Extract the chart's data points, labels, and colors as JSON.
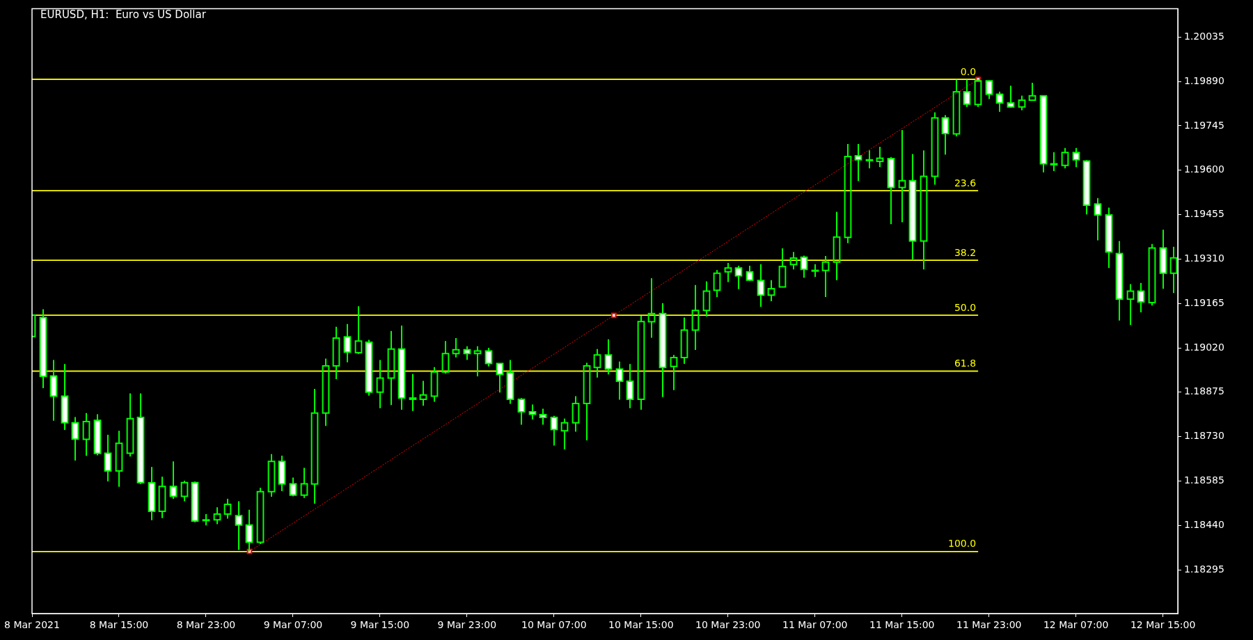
{
  "chart_data": {
    "type": "candlestick",
    "title": "EURUSD, H1:  Euro vs US Dollar",
    "color": "#00ff00",
    "colors": [
      "#00ff00",
      "#ffffff",
      "#ffffff",
      "#ffffff",
      "#ffffff",
      "#00ff00",
      "#ffffff",
      "#ffffff",
      "#00ff00",
      "#00ff00",
      "#ffffff",
      "#ffffff",
      "#00ff00",
      "#ffffff",
      "#00ff00",
      "#ffffff",
      "#ffffff",
      "#00ff00",
      "#00ff00",
      "#ffffff",
      "#ffffff",
      "#00ff00",
      "#00ff00",
      "#ffffff",
      "#ffffff",
      "#00ff00",
      "#00ff00",
      "#00ff00",
      "#00ff00",
      "#ffffff",
      "#00ff00",
      "#ffffff",
      "#00ff00",
      "#00ff00",
      "#ffffff",
      "#ffffff",
      "#00ff00",
      "#00ff00",
      "#00ff00",
      "#00ff00",
      "#ffffff",
      "#00ff00",
      "#ffffff",
      "#ffffff",
      "#ffffff",
      "#ffffff",
      "#ffffff",
      "#ffffff",
      "#ffffff",
      "#00ff00",
      "#00ff00",
      "#00ff00",
      "#00ff00",
      "#ffffff",
      "#ffffff",
      "#ffffff",
      "#00ff00",
      "#00ff00",
      "#ffffff",
      "#00ff00",
      "#00ff00",
      "#00ff00",
      "#00ff00",
      "#00ff00",
      "#00ff00",
      "#ffffff",
      "#ffffff",
      "#ffffff",
      "#00ff00",
      "#00ff00",
      "#00ff00",
      "#ffffff",
      "#00ff00",
      "#00ff00",
      "#00ff00",
      "#00ff00",
      "#ffffff",
      "#ffffff",
      "#00ff00",
      "#ffffff",
      "#00ff00",
      "#ffffff",
      "#00ff00",
      "#00ff00",
      "#ffffff",
      "#00ff00",
      "#ffffff",
      "#00ff00",
      "#ffffff",
      "#ffffff",
      "#ffffff",
      "#00ff00",
      "#00ff00",
      "#ffffff",
      "#ffffff",
      "#00ff00",
      "#ffffff",
      "#ffffff",
      "#ffffff",
      "#ffffff",
      "#ffffff",
      "#00ff00",
      "#ffffff",
      "#00ff00",
      "#ffffff",
      "#00ff00"
    ],
    "x": [
      "2021-03-08T07:00",
      "2021-03-08T08:00",
      "2021-03-08T09:00",
      "2021-03-08T10:00",
      "2021-03-08T11:00",
      "2021-03-08T12:00",
      "2021-03-08T13:00",
      "2021-03-08T14:00",
      "2021-03-08T15:00",
      "2021-03-08T16:00",
      "2021-03-08T17:00",
      "2021-03-08T18:00",
      "2021-03-08T19:00",
      "2021-03-08T20:00",
      "2021-03-08T21:00",
      "2021-03-08T22:00",
      "2021-03-08T23:00",
      "2021-03-09T00:00",
      "2021-03-09T01:00",
      "2021-03-09T02:00",
      "2021-03-09T03:00",
      "2021-03-09T04:00",
      "2021-03-09T05:00",
      "2021-03-09T06:00",
      "2021-03-09T07:00",
      "2021-03-09T08:00",
      "2021-03-09T09:00",
      "2021-03-09T10:00",
      "2021-03-09T11:00",
      "2021-03-09T12:00",
      "2021-03-09T13:00",
      "2021-03-09T14:00",
      "2021-03-09T15:00",
      "2021-03-09T16:00",
      "2021-03-09T17:00",
      "2021-03-09T18:00",
      "2021-03-09T19:00",
      "2021-03-09T20:00",
      "2021-03-09T21:00",
      "2021-03-09T22:00",
      "2021-03-09T23:00",
      "2021-03-10T00:00",
      "2021-03-10T01:00",
      "2021-03-10T02:00",
      "2021-03-10T03:00",
      "2021-03-10T04:00",
      "2021-03-10T05:00",
      "2021-03-10T06:00",
      "2021-03-10T07:00",
      "2021-03-10T08:00",
      "2021-03-10T09:00",
      "2021-03-10T10:00",
      "2021-03-10T11:00",
      "2021-03-10T12:00",
      "2021-03-10T13:00",
      "2021-03-10T14:00",
      "2021-03-10T15:00",
      "2021-03-10T16:00",
      "2021-03-10T17:00",
      "2021-03-10T18:00",
      "2021-03-10T19:00",
      "2021-03-10T20:00",
      "2021-03-10T21:00",
      "2021-03-10T22:00",
      "2021-03-10T23:00",
      "2021-03-11T00:00",
      "2021-03-11T01:00",
      "2021-03-11T02:00",
      "2021-03-11T03:00",
      "2021-03-11T04:00",
      "2021-03-11T05:00",
      "2021-03-11T06:00",
      "2021-03-11T07:00",
      "2021-03-11T08:00",
      "2021-03-11T09:00",
      "2021-03-11T10:00",
      "2021-03-11T11:00",
      "2021-03-11T12:00",
      "2021-03-11T13:00",
      "2021-03-11T14:00",
      "2021-03-11T15:00",
      "2021-03-11T16:00",
      "2021-03-11T17:00",
      "2021-03-11T18:00",
      "2021-03-11T19:00",
      "2021-03-11T20:00",
      "2021-03-11T21:00",
      "2021-03-11T22:00",
      "2021-03-11T23:00",
      "2021-03-12T00:00",
      "2021-03-12T01:00",
      "2021-03-12T02:00",
      "2021-03-12T03:00",
      "2021-03-12T04:00",
      "2021-03-12T05:00",
      "2021-03-12T06:00",
      "2021-03-12T07:00",
      "2021-03-12T08:00",
      "2021-03-12T09:00",
      "2021-03-12T10:00",
      "2021-03-12T11:00",
      "2021-03-12T12:00",
      "2021-03-12T13:00",
      "2021-03-12T14:00",
      "2021-03-12T15:00",
      "2021-03-12T16:00"
    ],
    "ohlc": [
      [
        1.19057,
        1.19127,
        1.19057,
        1.19127
      ],
      [
        1.19119,
        1.19146,
        1.18888,
        1.18927
      ],
      [
        1.18928,
        1.1898,
        1.18782,
        1.18862
      ],
      [
        1.18862,
        1.18967,
        1.18752,
        1.18775
      ],
      [
        1.18775,
        1.18794,
        1.18652,
        1.18722
      ],
      [
        1.18721,
        1.18807,
        1.18667,
        1.18779
      ],
      [
        1.18783,
        1.18803,
        1.18669,
        1.18675
      ],
      [
        1.18676,
        1.18736,
        1.18584,
        1.18618
      ],
      [
        1.18618,
        1.18749,
        1.18566,
        1.18708
      ],
      [
        1.18676,
        1.18871,
        1.18665,
        1.18789
      ],
      [
        1.18793,
        1.18871,
        1.18575,
        1.1858
      ],
      [
        1.18579,
        1.18631,
        1.18457,
        1.18486
      ],
      [
        1.18486,
        1.18599,
        1.18464,
        1.18567
      ],
      [
        1.18567,
        1.18649,
        1.18527,
        1.18535
      ],
      [
        1.18535,
        1.18586,
        1.18519,
        1.1858
      ],
      [
        1.1858,
        1.18583,
        1.1845,
        1.18454
      ],
      [
        1.18458,
        1.18477,
        1.1844,
        1.18456
      ],
      [
        1.18458,
        1.18499,
        1.18444,
        1.18477
      ],
      [
        1.18477,
        1.18527,
        1.18462,
        1.18509
      ],
      [
        1.18472,
        1.18519,
        1.1836,
        1.18441
      ],
      [
        1.18441,
        1.18491,
        1.18355,
        1.18385
      ],
      [
        1.18385,
        1.18563,
        1.18379,
        1.1855
      ],
      [
        1.1855,
        1.18673,
        1.18534,
        1.18649
      ],
      [
        1.18649,
        1.18668,
        1.18552,
        1.18575
      ],
      [
        1.18576,
        1.18596,
        1.18535,
        1.18539
      ],
      [
        1.18539,
        1.18628,
        1.1853,
        1.18576
      ],
      [
        1.18575,
        1.18886,
        1.18511,
        1.18807
      ],
      [
        1.18807,
        1.18985,
        1.18765,
        1.18961
      ],
      [
        1.18961,
        1.19089,
        1.18918,
        1.19052
      ],
      [
        1.19056,
        1.19098,
        1.18973,
        1.19006
      ],
      [
        1.19004,
        1.19156,
        1.19,
        1.19042
      ],
      [
        1.19038,
        1.19046,
        1.18864,
        1.18875
      ],
      [
        1.18875,
        1.1898,
        1.18823,
        1.18921
      ],
      [
        1.18921,
        1.19075,
        1.18833,
        1.19016
      ],
      [
        1.19016,
        1.19093,
        1.18818,
        1.18856
      ],
      [
        1.18856,
        1.18935,
        1.18814,
        1.18852
      ],
      [
        1.18852,
        1.18912,
        1.18831,
        1.18866
      ],
      [
        1.18862,
        1.18957,
        1.18844,
        1.18941
      ],
      [
        1.18941,
        1.19042,
        1.18936,
        1.19001
      ],
      [
        1.19001,
        1.19052,
        1.18989,
        1.19014
      ],
      [
        1.19014,
        1.19025,
        1.18981,
        1.19001
      ],
      [
        1.19001,
        1.19025,
        1.18927,
        1.1901
      ],
      [
        1.1901,
        1.1902,
        1.18959,
        1.18969
      ],
      [
        1.18969,
        1.18969,
        1.18874,
        1.18933
      ],
      [
        1.18939,
        1.1898,
        1.18837,
        1.18852
      ],
      [
        1.18852,
        1.18856,
        1.18769,
        1.18811
      ],
      [
        1.18811,
        1.18835,
        1.18786,
        1.18803
      ],
      [
        1.18802,
        1.18821,
        1.18769,
        1.18793
      ],
      [
        1.18793,
        1.18798,
        1.18701,
        1.18753
      ],
      [
        1.18749,
        1.18789,
        1.18688,
        1.18775
      ],
      [
        1.18775,
        1.18862,
        1.18746,
        1.18838
      ],
      [
        1.18838,
        1.18971,
        1.18718,
        1.18961
      ],
      [
        1.18956,
        1.19016,
        1.18923,
        1.18997
      ],
      [
        1.18997,
        1.19048,
        1.18933,
        1.18951
      ],
      [
        1.18951,
        1.18975,
        1.18851,
        1.18911
      ],
      [
        1.18911,
        1.18967,
        1.18823,
        1.18852
      ],
      [
        1.18852,
        1.19125,
        1.18818,
        1.19106
      ],
      [
        1.19105,
        1.19247,
        1.19053,
        1.19132
      ],
      [
        1.19132,
        1.19166,
        1.18859,
        1.18956
      ],
      [
        1.18959,
        1.18997,
        1.18882,
        1.18988
      ],
      [
        1.18988,
        1.19119,
        1.18968,
        1.19078
      ],
      [
        1.19078,
        1.19225,
        1.19013,
        1.19142
      ],
      [
        1.19142,
        1.19237,
        1.19122,
        1.19205
      ],
      [
        1.19208,
        1.19274,
        1.19186,
        1.19264
      ],
      [
        1.19268,
        1.19297,
        1.19235,
        1.19281
      ],
      [
        1.19281,
        1.19288,
        1.19212,
        1.19255
      ],
      [
        1.19268,
        1.19288,
        1.19239,
        1.19241
      ],
      [
        1.1924,
        1.19293,
        1.19154,
        1.19192
      ],
      [
        1.19192,
        1.19241,
        1.19172,
        1.19213
      ],
      [
        1.19219,
        1.19345,
        1.19219,
        1.19286
      ],
      [
        1.19292,
        1.19333,
        1.19276,
        1.19313
      ],
      [
        1.19316,
        1.19321,
        1.19249,
        1.19276
      ],
      [
        1.19273,
        1.19293,
        1.19252,
        1.19273
      ],
      [
        1.19273,
        1.1932,
        1.19186,
        1.193
      ],
      [
        1.193,
        1.19464,
        1.19241,
        1.19382
      ],
      [
        1.19381,
        1.19686,
        1.19362,
        1.19645
      ],
      [
        1.19647,
        1.19686,
        1.19565,
        1.19634
      ],
      [
        1.19634,
        1.19665,
        1.19606,
        1.19632
      ],
      [
        1.19629,
        1.19677,
        1.1961,
        1.19639
      ],
      [
        1.19638,
        1.19643,
        1.19424,
        1.19544
      ],
      [
        1.19544,
        1.19731,
        1.1943,
        1.19566
      ],
      [
        1.19566,
        1.19653,
        1.19309,
        1.19369
      ],
      [
        1.19369,
        1.19665,
        1.19276,
        1.1958
      ],
      [
        1.1958,
        1.19789,
        1.19553,
        1.19771
      ],
      [
        1.19771,
        1.1978,
        1.19651,
        1.1972
      ],
      [
        1.19719,
        1.19896,
        1.19711,
        1.19856
      ],
      [
        1.19856,
        1.19896,
        1.19807,
        1.19816
      ],
      [
        1.19815,
        1.19897,
        1.19807,
        1.19892
      ],
      [
        1.19892,
        1.19894,
        1.19833,
        1.19848
      ],
      [
        1.19848,
        1.19857,
        1.19791,
        1.1982
      ],
      [
        1.1982,
        1.19876,
        1.19805,
        1.19807
      ],
      [
        1.19807,
        1.19844,
        1.19796,
        1.19829
      ],
      [
        1.19829,
        1.19886,
        1.19829,
        1.19843
      ],
      [
        1.19843,
        1.19844,
        1.19593,
        1.19621
      ],
      [
        1.19621,
        1.19659,
        1.19597,
        1.19618
      ],
      [
        1.19616,
        1.19673,
        1.19606,
        1.19658
      ],
      [
        1.19658,
        1.19673,
        1.1961,
        1.19634
      ],
      [
        1.1963,
        1.19633,
        1.19456,
        1.19486
      ],
      [
        1.1949,
        1.19509,
        1.19371,
        1.19454
      ],
      [
        1.19454,
        1.19478,
        1.19281,
        1.19333
      ],
      [
        1.19328,
        1.19369,
        1.19109,
        1.19179
      ],
      [
        1.19179,
        1.19228,
        1.19095,
        1.19205
      ],
      [
        1.19205,
        1.19232,
        1.19136,
        1.1917
      ],
      [
        1.19168,
        1.19359,
        1.19158,
        1.19346
      ],
      [
        1.19346,
        1.19406,
        1.19213,
        1.19264
      ],
      [
        1.19264,
        1.1935,
        1.19199,
        1.19314
      ]
    ],
    "series": [
      {
        "type": "line",
        "color": "#ff0000",
        "x": [
          "2021-03-09T03:00",
          "2021-03-10T12:30",
          "2021-03-11T22:00"
        ],
        "values": [
          1.18355,
          1.19126,
          1.19897
        ],
        "marker": "square",
        "line_style": "dotted"
      }
    ],
    "ref_lines": [
      {
        "axis": "y",
        "value": 1.19897,
        "color": "#ffff00"
      },
      {
        "axis": "y",
        "value": 1.19533,
        "color": "#ffff00"
      },
      {
        "axis": "y",
        "value": 1.19306,
        "color": "#ffff00"
      },
      {
        "axis": "y",
        "value": 1.19126,
        "color": "#ffff00"
      },
      {
        "axis": "y",
        "value": 1.18944,
        "color": "#ffff00"
      },
      {
        "axis": "y",
        "value": 1.18355,
        "color": "#ffff00"
      }
    ],
    "annotations": [
      {
        "text": "0.0",
        "x": "2021-03-11T22:00",
        "y": 1.19897
      },
      {
        "text": "23.6",
        "x": "2021-03-11T22:00",
        "y": 1.19533
      },
      {
        "text": "38.2",
        "x": "2021-03-11T22:00",
        "y": 1.19306
      },
      {
        "text": "50.0",
        "x": "2021-03-11T22:00",
        "y": 1.19126
      },
      {
        "text": "61.8",
        "x": "2021-03-11T22:00",
        "y": 1.18944
      },
      {
        "text": "100.0",
        "x": "2021-03-11T22:00",
        "y": 1.18355
      }
    ],
    "xlim": [
      "2021-03-08T07:00",
      "2021-03-12T16:22"
    ],
    "xticks": [
      {
        "value": "2021-03-08T07:00",
        "label": "8 Mar 2021"
      },
      {
        "value": "2021-03-08T15:00",
        "label": "8 Mar 15:00"
      },
      {
        "value": "2021-03-08T23:00",
        "label": "8 Mar 23:00"
      },
      {
        "value": "2021-03-09T07:00",
        "label": "9 Mar 07:00"
      },
      {
        "value": "2021-03-09T15:00",
        "label": "9 Mar 15:00"
      },
      {
        "value": "2021-03-09T23:00",
        "label": "9 Mar 23:00"
      },
      {
        "value": "2021-03-10T07:00",
        "label": "10 Mar 07:00"
      },
      {
        "value": "2021-03-10T15:00",
        "label": "10 Mar 15:00"
      },
      {
        "value": "2021-03-10T23:00",
        "label": "10 Mar 23:00"
      },
      {
        "value": "2021-03-11T07:00",
        "label": "11 Mar 07:00"
      },
      {
        "value": "2021-03-11T15:00",
        "label": "11 Mar 15:00"
      },
      {
        "value": "2021-03-11T23:00",
        "label": "11 Mar 23:00"
      },
      {
        "value": "2021-03-12T07:00",
        "label": "12 Mar 07:00"
      },
      {
        "value": "2021-03-12T15:00",
        "label": "12 Mar 15:00"
      }
    ],
    "ylim": [
      1.18152,
      1.20128
    ],
    "yticks": [
      1.18295,
      {
        "value": 1.1844,
        "label": "1.18440"
      },
      1.18585,
      {
        "value": 1.1873,
        "label": "1.18730"
      },
      1.18875,
      {
        "value": 1.1902,
        "label": "1.19020"
      },
      1.19165,
      {
        "value": 1.1931,
        "label": "1.19310"
      },
      1.19455,
      {
        "value": 1.196,
        "label": "1.19600"
      },
      1.19745,
      {
        "value": 1.1989,
        "label": "1.19890"
      },
      1.20035
    ]
  }
}
